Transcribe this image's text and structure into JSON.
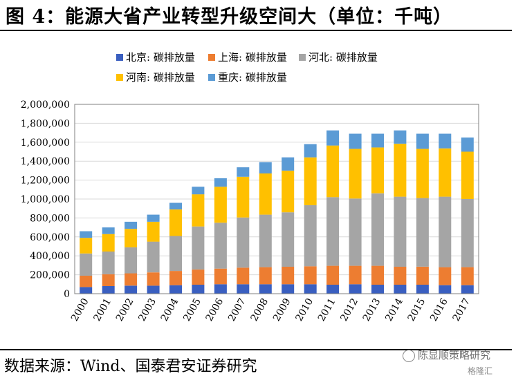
{
  "header": {
    "title": "图 4：能源大省产业转型升级空间大（单位：千吨）"
  },
  "footer": {
    "source": "数据来源：Wind、国泰君安证券研究"
  },
  "watermark": {
    "text": "陈显顺策略研究",
    "sub": "格隆汇"
  },
  "chart_data": {
    "type": "bar",
    "stacked": true,
    "categories": [
      "2000",
      "2001",
      "2002",
      "2003",
      "2004",
      "2005",
      "2006",
      "2007",
      "2008",
      "2009",
      "2010",
      "2011",
      "2012",
      "2013",
      "2014",
      "2015",
      "2016",
      "2017"
    ],
    "series": [
      {
        "name": "北京: 碳排放量",
        "color": "#3a5fc0",
        "values": [
          70000,
          80000,
          85000,
          85000,
          90000,
          95000,
          100000,
          100000,
          100000,
          100000,
          100000,
          95000,
          100000,
          95000,
          95000,
          95000,
          90000,
          90000
        ]
      },
      {
        "name": "上海: 碳排放量",
        "color": "#ed7d31",
        "values": [
          120000,
          125000,
          130000,
          140000,
          150000,
          160000,
          165000,
          175000,
          180000,
          185000,
          190000,
          200000,
          195000,
          200000,
          190000,
          190000,
          190000,
          190000
        ]
      },
      {
        "name": "河北: 碳排放量",
        "color": "#a5a5a5",
        "values": [
          235000,
          240000,
          275000,
          325000,
          370000,
          455000,
          485000,
          530000,
          555000,
          575000,
          645000,
          725000,
          710000,
          765000,
          740000,
          725000,
          745000,
          720000
        ]
      },
      {
        "name": "河南: 碳排放量",
        "color": "#ffc000",
        "values": [
          165000,
          185000,
          195000,
          210000,
          280000,
          340000,
          380000,
          430000,
          435000,
          440000,
          505000,
          545000,
          525000,
          485000,
          560000,
          520000,
          510000,
          500000
        ]
      },
      {
        "name": "重庆: 碳排放量",
        "color": "#5b9bd5",
        "values": [
          70000,
          70000,
          75000,
          75000,
          70000,
          80000,
          90000,
          100000,
          120000,
          140000,
          140000,
          160000,
          160000,
          145000,
          140000,
          160000,
          155000,
          150000
        ]
      }
    ],
    "ylim": [
      0,
      2000000
    ],
    "yticks": [
      "0",
      "200,000",
      "400,000",
      "600,000",
      "800,000",
      "1,000,000",
      "1,200,000",
      "1,400,000",
      "1,600,000",
      "1,800,000",
      "2,000,000"
    ],
    "grid": true,
    "legend_position": "top"
  }
}
